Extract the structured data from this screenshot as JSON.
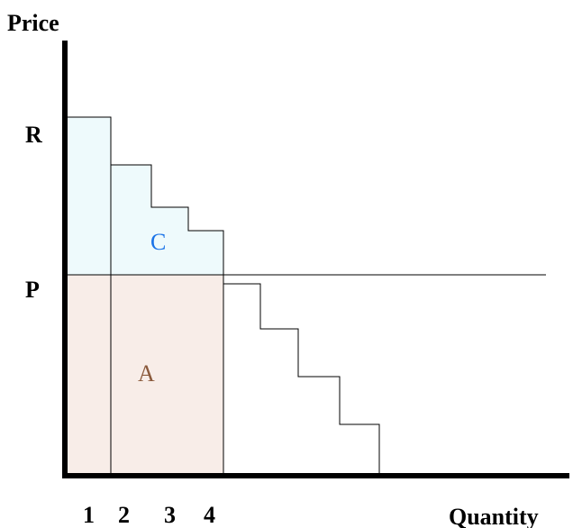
{
  "axes": {
    "y_label": "Price",
    "x_label": "Quantity"
  },
  "price_labels": [
    "R",
    "P"
  ],
  "areas": [
    "C",
    "A"
  ],
  "quantity_labels": [
    "1",
    "2",
    "3",
    "4"
  ]
}
